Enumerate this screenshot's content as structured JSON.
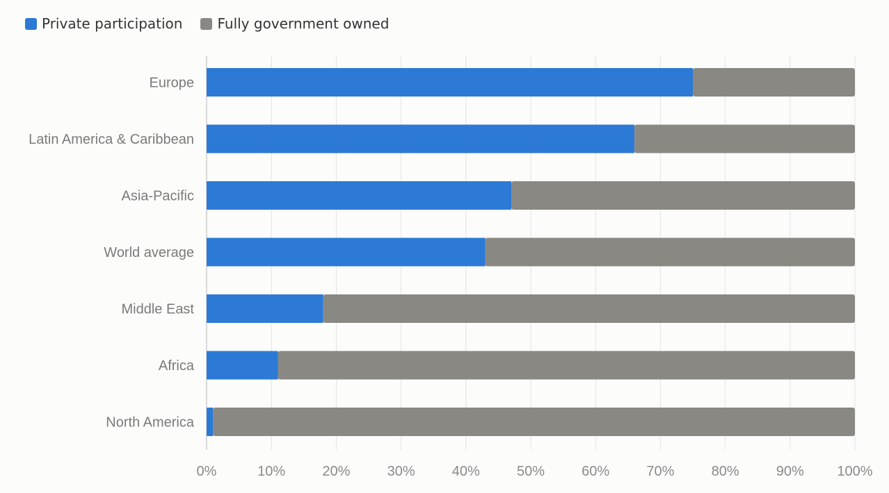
{
  "legend": {
    "private_label": "Private participation",
    "government_label": "Fully government owned"
  },
  "colors": {
    "private": "#2c7ad6",
    "government": "#8a8882",
    "grid": "#e3e3e3",
    "axis": "#cfcfcf"
  },
  "chart_data": {
    "type": "bar",
    "orientation": "horizontal",
    "stacked": true,
    "categories": [
      "Europe",
      "Latin America & Caribbean",
      "Asia-Pacific",
      "World average",
      "Middle East",
      "Africa",
      "North America"
    ],
    "series": [
      {
        "name": "Private participation",
        "values": [
          75,
          66,
          47,
          43,
          18,
          11,
          1
        ]
      },
      {
        "name": "Fully government owned",
        "values": [
          25,
          34,
          53,
          57,
          82,
          89,
          99
        ]
      }
    ],
    "xlim": [
      0,
      100
    ],
    "xticks": [
      "0%",
      "10%",
      "20%",
      "30%",
      "40%",
      "50%",
      "60%",
      "70%",
      "80%",
      "90%",
      "100%"
    ],
    "grid": true,
    "legend_position": "top-left"
  }
}
